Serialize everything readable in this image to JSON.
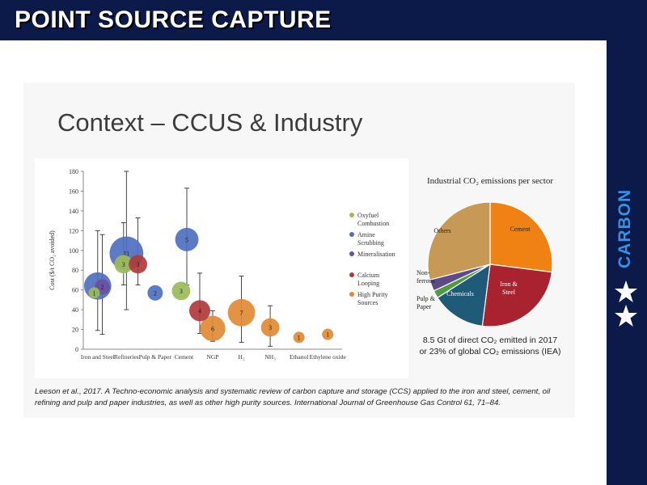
{
  "header": {
    "title": "POINT SOURCE CAPTURE"
  },
  "sidebar": {
    "word": "CARBON",
    "stars": [
      "star-icon",
      "star-icon"
    ]
  },
  "colors": {
    "navy": "#0c1a4a",
    "accent": "#3b8fe0"
  },
  "slide": {
    "title": "Context – CCUS & Industry",
    "citation": "Leeson et al., 2017. A Techno-economic analysis and systematic review of carbon capture and storage (CCS) applied to the iron and steel, cement, oil refining and pulp and paper industries, as well as other high purity sources. International Journal of Greenhouse Gas Control 61, 71–84.",
    "pie_caption_line1": "8.5 Gt of direct CO₂ emitted in 2017",
    "pie_caption_line2": "or 23% of global CO₂ emissions (IEA)"
  },
  "chart_data": [
    {
      "type": "scatter",
      "xlabel": "",
      "ylabel": "Cost ($/t CO₂ avoided)",
      "ylim": [
        0,
        180
      ],
      "yticks": [
        0,
        20,
        40,
        60,
        80,
        100,
        120,
        140,
        160,
        180
      ],
      "categories": [
        "Iron and Steel",
        "Refineries",
        "Pulp & Paper",
        "Cement",
        "NGP",
        "H₂",
        "NH₃",
        "Ethanol",
        "Ethylene oxide"
      ],
      "legend": [
        "Oxyfuel Combustion",
        "Amine Scrubbing",
        "Mineralisation",
        "Calcium Looping",
        "High Purity Sources"
      ],
      "series_colors": {
        "Oxyfuel Combustion": "#9bbb59",
        "Amine Scrubbing": "#4f6fbf",
        "Mineralisation": "#6b4fa0",
        "Calcium Looping": "#b03a3a",
        "High Purity Sources": "#e08a34"
      },
      "legend_position": "right",
      "points": [
        {
          "cat": 0,
          "offset": -0.12,
          "y": 57,
          "n": 1,
          "series": "Oxyfuel Combustion",
          "low": null,
          "high": null
        },
        {
          "cat": 0,
          "offset": 0.0,
          "y": 64,
          "n": 7,
          "series": "Amine Scrubbing",
          "low": 19,
          "high": 120
        },
        {
          "cat": 0,
          "offset": 0.16,
          "y": 63,
          "n": 2,
          "series": "Mineralisation",
          "low": 15,
          "high": 116
        },
        {
          "cat": 1,
          "offset": -0.1,
          "y": 86,
          "n": 3,
          "series": "Oxyfuel Combustion",
          "low": 65,
          "high": 128
        },
        {
          "cat": 1,
          "offset": 0.0,
          "y": 97,
          "n": 11,
          "series": "Amine Scrubbing",
          "low": 40,
          "high": 180
        },
        {
          "cat": 1,
          "offset": 0.4,
          "y": 86,
          "n": 3,
          "series": "Calcium Looping",
          "low": 65,
          "high": 133
        },
        {
          "cat": 2,
          "offset": 0.0,
          "y": 57,
          "n": 2,
          "series": "Amine Scrubbing",
          "low": null,
          "high": null
        },
        {
          "cat": 3,
          "offset": -0.1,
          "y": 59,
          "n": 3,
          "series": "Oxyfuel Combustion",
          "low": null,
          "high": null
        },
        {
          "cat": 3,
          "offset": 0.1,
          "y": 111,
          "n": 5,
          "series": "Amine Scrubbing",
          "low": 65,
          "high": 163
        },
        {
          "cat": 4,
          "offset": -0.45,
          "y": 39,
          "n": 4,
          "series": "Calcium Looping",
          "low": 16,
          "high": 77
        },
        {
          "cat": 4,
          "offset": 0.0,
          "y": 21,
          "n": 6,
          "series": "High Purity Sources",
          "low": 8,
          "high": 39
        },
        {
          "cat": 5,
          "offset": 0.0,
          "y": 37,
          "n": 7,
          "series": "High Purity Sources",
          "low": 7,
          "high": 74
        },
        {
          "cat": 6,
          "offset": 0.0,
          "y": 22,
          "n": 3,
          "series": "High Purity Sources",
          "low": 3,
          "high": 44
        },
        {
          "cat": 7,
          "offset": 0.0,
          "y": 12,
          "n": 1,
          "series": "High Purity Sources",
          "low": null,
          "high": null
        },
        {
          "cat": 8,
          "offset": 0.0,
          "y": 15,
          "n": 1,
          "series": "High Purity Sources",
          "low": null,
          "high": null
        }
      ]
    },
    {
      "type": "pie",
      "title": "Industrial CO₂ emissions per sector",
      "slices": [
        {
          "label": "Cement",
          "value": 27,
          "color": "#ef8212"
        },
        {
          "label": "Iron & Steel",
          "value": 25,
          "color": "#a8232f"
        },
        {
          "label": "Chemicals",
          "value": 14,
          "color": "#1f5a78"
        },
        {
          "label": "Pulp & Paper",
          "value": 2,
          "color": "#4f9a43"
        },
        {
          "label": "Non-ferrous",
          "value": 3,
          "color": "#5d4a86"
        },
        {
          "label": "Others",
          "value": 29,
          "color": "#c79956"
        }
      ]
    }
  ]
}
